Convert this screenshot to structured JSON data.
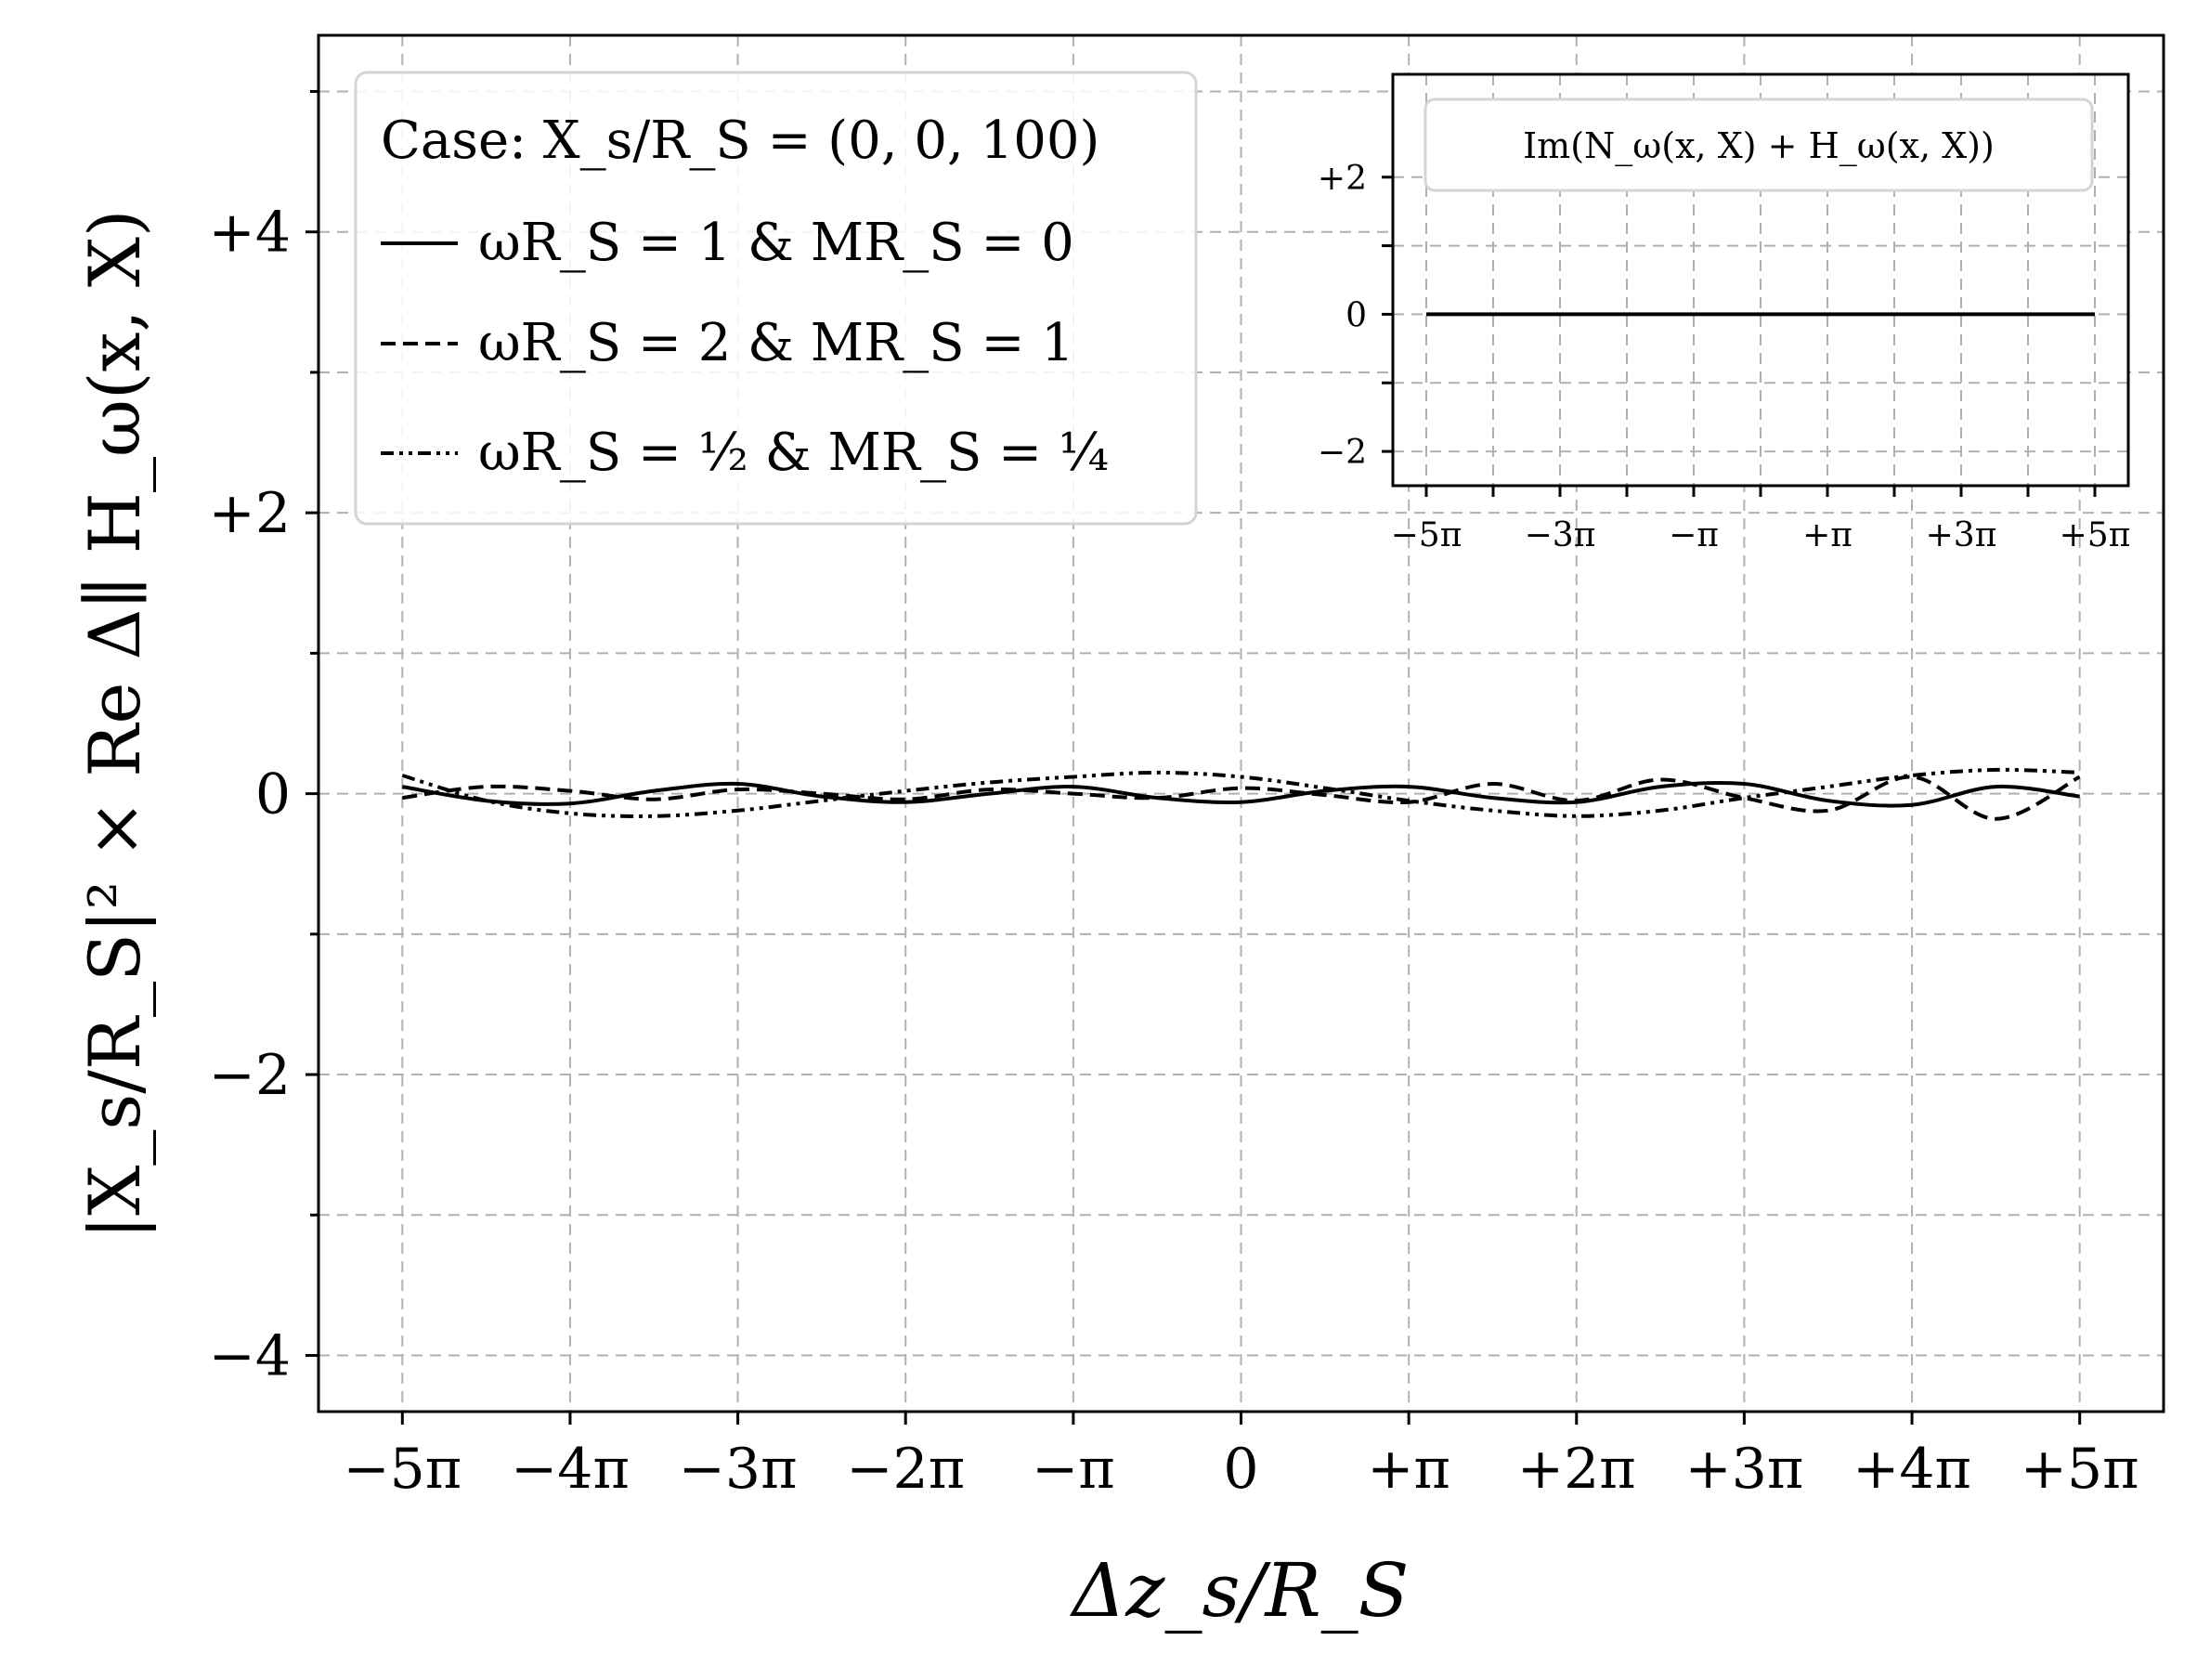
{
  "chart_data": {
    "type": "line",
    "xlabel": "Δz_s/R_S",
    "ylabel": "|X_s/R_S|² × Re Δ∥ H_ω(x, X)",
    "x_tick_labels": [
      "−5π",
      "−4π",
      "−3π",
      "−2π",
      "−π",
      "0",
      "+π",
      "+2π",
      "+3π",
      "+4π",
      "+5π"
    ],
    "x_ticks_over_pi": [
      -5,
      -4,
      -3,
      -2,
      -1,
      0,
      1,
      2,
      3,
      4,
      5
    ],
    "xlim_over_pi": [
      -5.5,
      5.5
    ],
    "y_ticks": [
      -4,
      -2,
      0,
      2,
      4
    ],
    "y_tick_labels": [
      "−4",
      "−2",
      "0",
      "+2",
      "+4"
    ],
    "ylim": [
      -4.4,
      5.4
    ],
    "grid": true,
    "legend": {
      "placement": "top-left",
      "title": "Case: X_s/R_S = (0, 0, 100)",
      "entries": [
        {
          "label": "ωR_S = 1 & MR_S = 0",
          "style": "solid"
        },
        {
          "label": "ωR_S = 2 & MR_S = 1",
          "style": "dashed"
        },
        {
          "label": "ωR_S = ½ & MR_S = ¼",
          "style": "dash-dot-dot"
        }
      ]
    },
    "x_over_pi": [
      -5,
      -4.5,
      -4,
      -3.5,
      -3,
      -2.5,
      -2,
      -1.5,
      -1,
      -0.5,
      0,
      0.5,
      1,
      1.5,
      2,
      2.5,
      3,
      3.5,
      4,
      4.5,
      5
    ],
    "series": [
      {
        "style": "solid",
        "values": [
          0.05,
          -0.05,
          -0.07,
          0.02,
          0.07,
          -0.02,
          -0.06,
          0.0,
          0.05,
          -0.03,
          -0.06,
          0.02,
          0.05,
          -0.03,
          -0.06,
          0.05,
          0.07,
          -0.05,
          -0.08,
          0.05,
          -0.02
        ]
      },
      {
        "style": "dashed",
        "values": [
          -0.03,
          0.05,
          0.02,
          -0.04,
          0.03,
          0.0,
          -0.04,
          0.03,
          0.0,
          -0.03,
          0.04,
          -0.01,
          -0.06,
          0.07,
          -0.05,
          0.1,
          -0.03,
          -0.12,
          0.12,
          -0.18,
          0.12
        ]
      },
      {
        "style": "dash-dot-dot",
        "values": [
          0.13,
          -0.05,
          -0.14,
          -0.16,
          -0.12,
          -0.05,
          0.02,
          0.08,
          0.12,
          0.15,
          0.12,
          0.04,
          -0.05,
          -0.12,
          -0.16,
          -0.12,
          -0.03,
          0.05,
          0.13,
          0.17,
          0.15
        ]
      }
    ],
    "inset": {
      "legend_label": "Im(N_ω(x, X) + H_ω(x, X))",
      "x_tick_labels": [
        "−5π",
        "−3π",
        "−π",
        "+π",
        "+3π",
        "+5π"
      ],
      "x_ticks_over_pi": [
        -5,
        -3,
        -1,
        1,
        3,
        5
      ],
      "minor_ticks_over_pi": [
        -4,
        -2,
        0,
        2,
        4
      ],
      "xlim_over_pi": [
        -5.5,
        5.5
      ],
      "y_ticks": [
        -2,
        0,
        2
      ],
      "y_tick_labels": [
        "−2",
        "0",
        "+2"
      ],
      "y_minor_ticks": [
        -1,
        1
      ],
      "ylim": [
        -2.5,
        3.5
      ],
      "series": [
        {
          "style": "solid",
          "x_over_pi": [
            -5,
            5
          ],
          "values": [
            0,
            0
          ]
        }
      ]
    }
  }
}
